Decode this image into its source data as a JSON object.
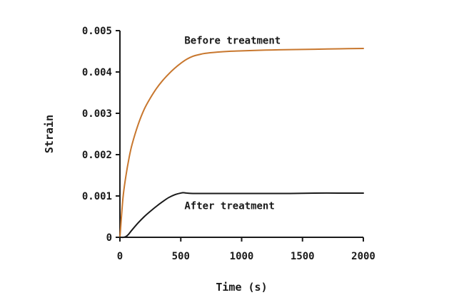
{
  "chart_data": {
    "type": "line",
    "title": "",
    "xlabel": "Time (s)",
    "ylabel": "Strain",
    "xlim": [
      0,
      2000
    ],
    "ylim": [
      0,
      0.005
    ],
    "xticks": [
      0,
      500,
      1000,
      1500,
      2000
    ],
    "xtick_labels": [
      "0",
      "500",
      "1000",
      "1500",
      "2000"
    ],
    "yticks": [
      0,
      0.001,
      0.002,
      0.003,
      0.004,
      0.005
    ],
    "ytick_labels": [
      "0",
      "0.001",
      "0.002",
      "0.003",
      "0.004",
      "0.005"
    ],
    "grid": false,
    "series": [
      {
        "name": "Before treatment",
        "color": "#c8772e",
        "x": [
          0,
          25,
          50,
          75,
          100,
          150,
          200,
          250,
          300,
          350,
          400,
          450,
          500,
          550,
          600,
          650,
          700,
          800,
          900,
          1000,
          1200,
          1400,
          1600,
          1800,
          2000
        ],
        "y": [
          0,
          0.00095,
          0.0015,
          0.00192,
          0.00225,
          0.00273,
          0.0031,
          0.00337,
          0.0036,
          0.00379,
          0.00395,
          0.00409,
          0.00421,
          0.00431,
          0.00438,
          0.00442,
          0.00445,
          0.00448,
          0.0045,
          0.00451,
          0.00453,
          0.00454,
          0.00455,
          0.00456,
          0.00457
        ]
      },
      {
        "name": "After treatment",
        "color": "#1a1a1a",
        "x": [
          0,
          30,
          50,
          70,
          100,
          150,
          200,
          250,
          300,
          350,
          400,
          450,
          500,
          520,
          550,
          600,
          700,
          800,
          1000,
          1200,
          1400,
          1600,
          1800,
          2000
        ],
        "y": [
          0,
          0,
          2e-05,
          7e-05,
          0.00018,
          0.00035,
          0.0005,
          0.00063,
          0.00075,
          0.00086,
          0.00096,
          0.00103,
          0.00107,
          0.00108,
          0.00107,
          0.00106,
          0.00106,
          0.00106,
          0.00106,
          0.00106,
          0.00106,
          0.00107,
          0.00107,
          0.00107
        ]
      }
    ],
    "annotations": [
      {
        "text": "Before treatment",
        "x": 530,
        "y": 0.00477
      },
      {
        "text": "After treatment",
        "x": 530,
        "y": 0.00077
      }
    ]
  }
}
